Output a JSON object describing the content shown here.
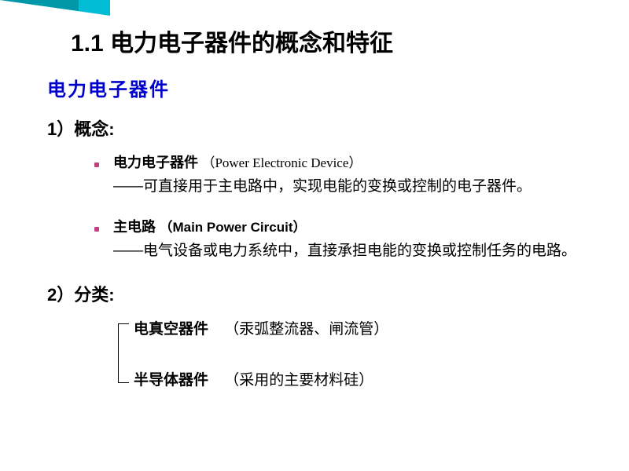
{
  "accent_color_light": "#00bcd4",
  "accent_color_dark": "#0097a7",
  "title": "1.1  电力电子器件的概念和特征",
  "subtitle": "电力电子器件",
  "section1": {
    "head": "1）概念:",
    "item1_term": "电力电子器件",
    "item1_paren": "（Power Electronic Device）",
    "item1_def": "——可直接用于主电路中，实现电能的变换或控制的电子器件。",
    "item2_term": "主电路",
    "item2_paren": "（Main Power Circuit）",
    "item2_def": "——电气设备或电力系统中，直接承担电能的变换或控制任务的电路。"
  },
  "section2": {
    "head": "2）分类:",
    "row1_term": "电真空器件",
    "row1_note": "（汞弧整流器、闸流管）",
    "row2_term": "半导体器件",
    "row2_note": "（采用的主要材料硅）"
  }
}
